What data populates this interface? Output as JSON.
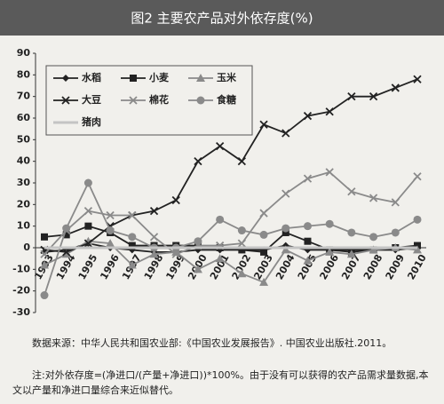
{
  "chart_data": {
    "type": "line",
    "title": "图2  主要农产品对外依存度(%)",
    "categories": [
      "1993",
      "1994",
      "1995",
      "1996",
      "1997",
      "1998",
      "1999",
      "2000",
      "2001",
      "2002",
      "2003",
      "2004",
      "2005",
      "2006",
      "2007",
      "2008",
      "2009",
      "2010"
    ],
    "series": [
      {
        "name": "水稻",
        "color": "#222222",
        "marker": "diamond",
        "values": [
          -2,
          -1,
          2,
          0,
          -1,
          -2,
          -2,
          -1,
          -1,
          -1,
          -1,
          1,
          -1,
          -1,
          -1,
          -1,
          -1,
          0
        ]
      },
      {
        "name": "小麦",
        "color": "#222222",
        "marker": "square",
        "values": [
          5,
          6,
          10,
          7,
          1,
          1,
          1,
          1,
          0,
          -1,
          -2,
          7,
          3,
          -1,
          -2,
          -1,
          0,
          1
        ]
      },
      {
        "name": "玉米",
        "color": "#8a8a8a",
        "marker": "triangle",
        "values": [
          -8,
          -3,
          3,
          2,
          -8,
          -3,
          -2,
          -10,
          -5,
          -12,
          -16,
          -1,
          -6,
          -2,
          -3,
          -1,
          0,
          -1
        ]
      },
      {
        "name": "大豆",
        "color": "#222222",
        "marker": "cross",
        "values": [
          -1,
          -2,
          2,
          10,
          15,
          17,
          22,
          40,
          47,
          40,
          57,
          53,
          61,
          63,
          70,
          70,
          74,
          78
        ]
      },
      {
        "name": "棉花",
        "color": "#8a8a8a",
        "marker": "cross",
        "values": [
          -3,
          8,
          17,
          15,
          15,
          5,
          -3,
          1,
          1,
          2,
          16,
          25,
          32,
          35,
          26,
          23,
          21,
          33
        ]
      },
      {
        "name": "食糖",
        "color": "#8a8a8a",
        "marker": "circle",
        "values": [
          -22,
          9,
          30,
          8,
          5,
          0,
          0,
          3,
          13,
          8,
          6,
          9,
          10,
          11,
          7,
          5,
          7,
          13
        ]
      },
      {
        "name": "猪肉",
        "color": "#c4c4c4",
        "marker": "none",
        "values": [
          0,
          0,
          0,
          0,
          0,
          0,
          0,
          0,
          0,
          0,
          0,
          0,
          0,
          0,
          0,
          0,
          0,
          0
        ]
      }
    ],
    "ylim": [
      -30,
      90
    ],
    "yticks": [
      -30,
      -20,
      -10,
      0,
      10,
      20,
      30,
      40,
      50,
      60,
      70,
      80,
      90
    ],
    "grid": false,
    "legend": "top-left"
  },
  "notes": [
    "数据来源：中华人民共和国农业部:《中国农业发展报告》. 中国农业出版社.2011。",
    "注:对外依存度=(净进口/(产量+净进口))*100%。由于没有可以获得的农产品需求量数据,本文以产量和净进口量综合来近似替代。"
  ]
}
